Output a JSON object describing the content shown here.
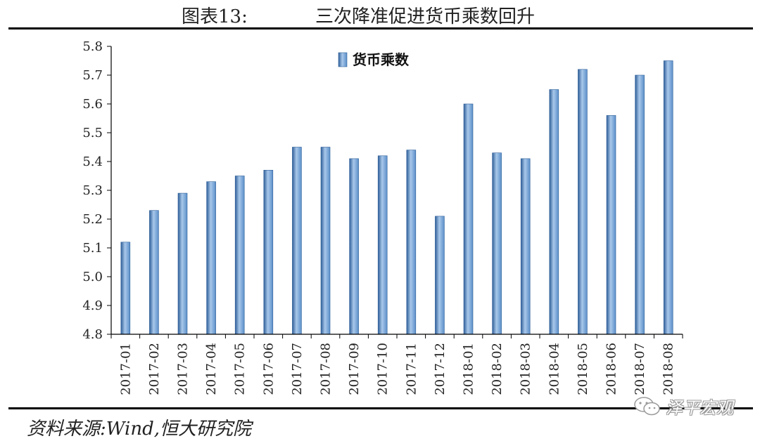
{
  "header": {
    "figure_label": "图表13:",
    "title": "三次降准促进货币乘数回升"
  },
  "footer": {
    "source": "资料来源:Wind,恒大研究院",
    "watermark": "泽平宏观",
    "watermark_icon": "wechat-icon"
  },
  "colors": {
    "bar_fill": "#5b8fc9",
    "bar_dark": "#2f5f99",
    "bar_light": "#a9c8ea",
    "axis": "#000000"
  },
  "chart_data": {
    "type": "bar",
    "categories": [
      "2017-01",
      "2017-02",
      "2017-03",
      "2017-04",
      "2017-05",
      "2017-06",
      "2017-07",
      "2017-08",
      "2017-09",
      "2017-10",
      "2017-11",
      "2017-12",
      "2018-01",
      "2018-02",
      "2018-03",
      "2018-04",
      "2018-05",
      "2018-06",
      "2018-07",
      "2018-08"
    ],
    "series": [
      {
        "name": "货币乘数",
        "values": [
          5.12,
          5.23,
          5.29,
          5.33,
          5.35,
          5.37,
          5.45,
          5.45,
          5.41,
          5.42,
          5.44,
          5.21,
          5.6,
          5.43,
          5.41,
          5.65,
          5.72,
          5.56,
          5.7,
          5.75
        ]
      }
    ],
    "ylim": [
      4.8,
      5.8
    ],
    "yticks": [
      "4.8",
      "4.9",
      "5.0",
      "5.1",
      "5.2",
      "5.3",
      "5.4",
      "5.5",
      "5.6",
      "5.7",
      "5.8"
    ],
    "legend_position": "top-left",
    "grid": false
  }
}
